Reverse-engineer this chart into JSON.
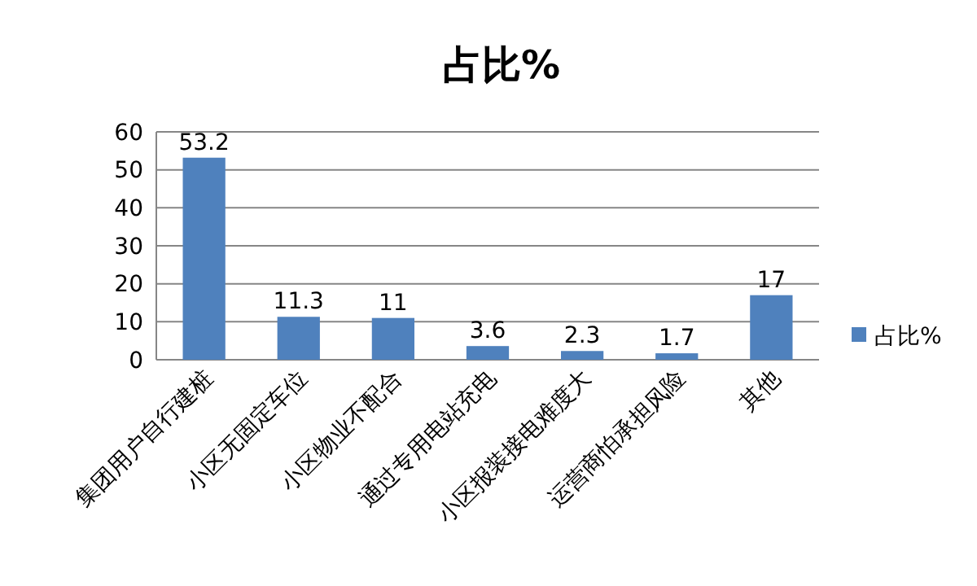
{
  "chart_data": {
    "type": "bar",
    "title": "占比%",
    "categories": [
      "集团用户自行建桩",
      "小区无固定车位",
      "小区物业不配合",
      "通过专用电站充电",
      "小区报装接电难度大",
      "运营商怕承担风险",
      "其他"
    ],
    "series": [
      {
        "name": "占比%",
        "color": "#4f81bd",
        "values": [
          53.2,
          11.3,
          11,
          3.6,
          2.3,
          1.7,
          17
        ]
      }
    ],
    "ylim": [
      0,
      60
    ],
    "yticks": [
      0,
      10,
      20,
      30,
      40,
      50,
      60
    ],
    "grid": "y",
    "legend": "right",
    "data_labels": true
  }
}
